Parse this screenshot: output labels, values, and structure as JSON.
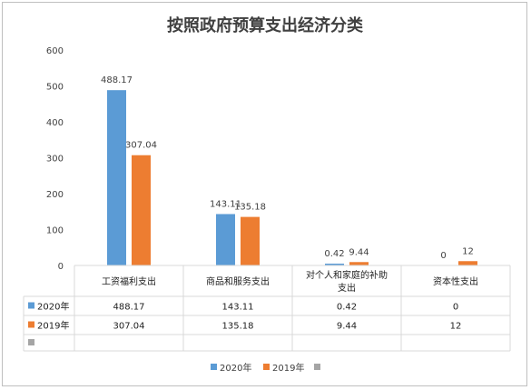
{
  "chart_data": {
    "type": "bar",
    "title": "按照政府预算支出经济分类",
    "categories": [
      "工资福利支出",
      "商品和服务支出",
      "对个人和家庭的补助支出",
      "资本性支出"
    ],
    "category_lines": [
      [
        "工资福利支出"
      ],
      [
        "商品和服务支出"
      ],
      [
        "对个人和家庭的补助",
        "支出"
      ],
      [
        "资本性支出"
      ]
    ],
    "series": [
      {
        "name": "2020年",
        "color": "#5b9bd5",
        "values": [
          488.17,
          143.11,
          0.42,
          0
        ],
        "labels": [
          "488.17",
          "143.11",
          "0.42",
          "0"
        ]
      },
      {
        "name": "2019年",
        "color": "#ed7d31",
        "values": [
          307.04,
          135.18,
          9.44,
          12
        ],
        "labels": [
          "307.04",
          "135.18",
          "9.44",
          "12"
        ]
      }
    ],
    "empty_series_color": "#a5a5a5",
    "ylim": [
      0,
      600
    ],
    "yticks": [
      "0",
      "100",
      "200",
      "300",
      "400",
      "500",
      "600"
    ],
    "grid": false,
    "legend_position": "bottom",
    "data_table": true
  }
}
